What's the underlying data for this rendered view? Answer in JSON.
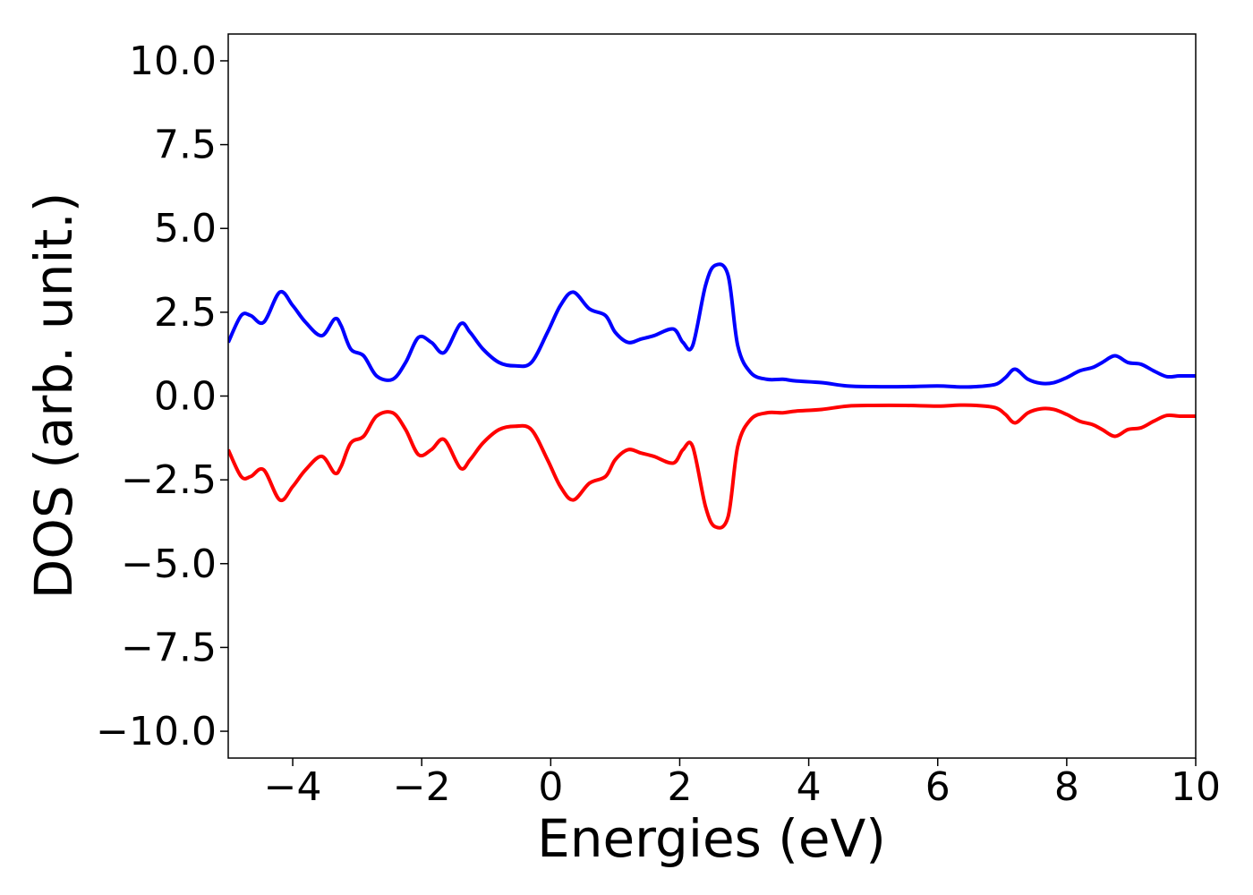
{
  "chart_data": {
    "type": "line",
    "title": "",
    "xlabel": "Energies (eV)",
    "ylabel": "DOS (arb. unit.)",
    "xlim": [
      -5,
      10
    ],
    "ylim": [
      -10.8,
      10.8
    ],
    "x_ticks": [
      -4,
      -2,
      0,
      2,
      4,
      6,
      8,
      10
    ],
    "x_tick_labels": [
      "−4",
      "−2",
      "0",
      "2",
      "4",
      "6",
      "8",
      "10"
    ],
    "y_ticks": [
      10,
      7.5,
      5,
      2.5,
      0,
      -2.5,
      -5,
      -7.5,
      -10
    ],
    "y_tick_labels": [
      "10.0",
      "7.5",
      "5.0",
      "2.5",
      "0.0",
      "−2.5",
      "−5.0",
      "−7.5",
      "−10.0"
    ],
    "grid": false,
    "legend": "none",
    "series": [
      {
        "color": "#0000ff",
        "x": [
          -5.0,
          -4.8,
          -4.65,
          -4.45,
          -4.2,
          -4.0,
          -3.8,
          -3.55,
          -3.35,
          -3.25,
          -3.1,
          -2.9,
          -2.7,
          -2.45,
          -2.25,
          -2.05,
          -1.85,
          -1.65,
          -1.4,
          -1.25,
          -1.05,
          -0.8,
          -0.55,
          -0.3,
          -0.05,
          0.15,
          0.35,
          0.6,
          0.85,
          1.0,
          1.2,
          1.4,
          1.6,
          1.9,
          2.05,
          2.2,
          2.4,
          2.55,
          2.75,
          2.9,
          3.1,
          3.35,
          3.6,
          3.8,
          4.2,
          4.6,
          5.0,
          5.5,
          6.0,
          6.35,
          6.6,
          6.9,
          7.05,
          7.2,
          7.4,
          7.6,
          7.8,
          8.0,
          8.2,
          8.4,
          8.55,
          8.75,
          8.95,
          9.15,
          9.35,
          9.55,
          9.75,
          10.0
        ],
        "values": [
          1.6,
          2.4,
          2.4,
          2.2,
          3.1,
          2.7,
          2.2,
          1.8,
          2.3,
          2.1,
          1.4,
          1.2,
          0.6,
          0.5,
          1.0,
          1.75,
          1.6,
          1.3,
          2.15,
          1.9,
          1.4,
          1.0,
          0.9,
          1.0,
          1.9,
          2.7,
          3.1,
          2.6,
          2.4,
          1.9,
          1.6,
          1.7,
          1.8,
          2.0,
          1.6,
          1.5,
          3.3,
          3.9,
          3.6,
          1.5,
          0.7,
          0.5,
          0.5,
          0.45,
          0.4,
          0.3,
          0.28,
          0.28,
          0.3,
          0.27,
          0.28,
          0.35,
          0.55,
          0.8,
          0.5,
          0.38,
          0.4,
          0.55,
          0.75,
          0.85,
          1.0,
          1.2,
          1.0,
          0.95,
          0.75,
          0.58,
          0.6,
          0.6
        ]
      },
      {
        "color": "#ff0000",
        "x": [
          -5.0,
          -4.8,
          -4.65,
          -4.45,
          -4.2,
          -4.0,
          -3.8,
          -3.55,
          -3.35,
          -3.25,
          -3.1,
          -2.9,
          -2.7,
          -2.45,
          -2.25,
          -2.05,
          -1.85,
          -1.65,
          -1.4,
          -1.25,
          -1.05,
          -0.8,
          -0.55,
          -0.3,
          -0.05,
          0.15,
          0.35,
          0.6,
          0.85,
          1.0,
          1.2,
          1.4,
          1.6,
          1.9,
          2.05,
          2.2,
          2.4,
          2.55,
          2.75,
          2.9,
          3.1,
          3.35,
          3.6,
          3.8,
          4.2,
          4.6,
          5.0,
          5.5,
          6.0,
          6.35,
          6.6,
          6.9,
          7.05,
          7.2,
          7.4,
          7.6,
          7.8,
          8.0,
          8.2,
          8.4,
          8.55,
          8.75,
          8.95,
          9.15,
          9.35,
          9.55,
          9.75,
          10.0
        ],
        "values": [
          -1.6,
          -2.4,
          -2.4,
          -2.2,
          -3.1,
          -2.7,
          -2.2,
          -1.8,
          -2.3,
          -2.1,
          -1.4,
          -1.2,
          -0.6,
          -0.5,
          -1.0,
          -1.75,
          -1.6,
          -1.3,
          -2.15,
          -1.9,
          -1.4,
          -1.0,
          -0.9,
          -1.0,
          -1.9,
          -2.7,
          -3.1,
          -2.6,
          -2.4,
          -1.9,
          -1.6,
          -1.7,
          -1.8,
          -2.0,
          -1.6,
          -1.5,
          -3.3,
          -3.9,
          -3.6,
          -1.5,
          -0.7,
          -0.5,
          -0.5,
          -0.45,
          -0.4,
          -0.3,
          -0.28,
          -0.28,
          -0.3,
          -0.27,
          -0.28,
          -0.35,
          -0.55,
          -0.8,
          -0.5,
          -0.38,
          -0.4,
          -0.55,
          -0.75,
          -0.85,
          -1.0,
          -1.2,
          -1.0,
          -0.95,
          -0.75,
          -0.58,
          -0.6,
          -0.6
        ]
      }
    ]
  }
}
